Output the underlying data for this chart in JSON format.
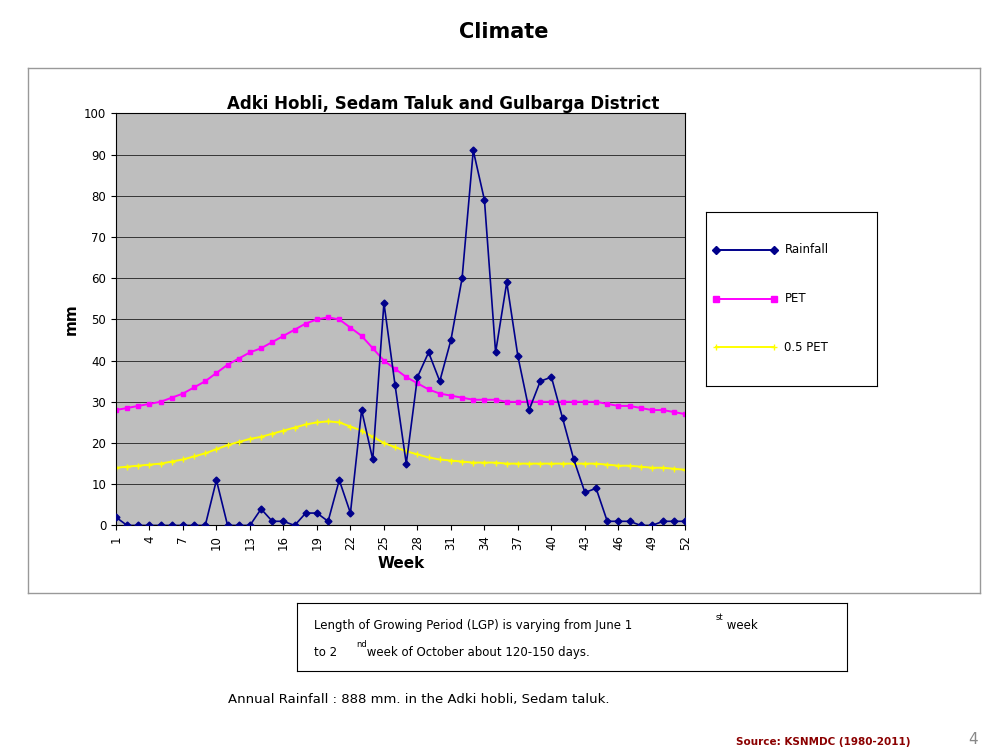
{
  "title": "Adki Hobli, Sedam Taluk and Gulbarga District",
  "header": "Climate",
  "xlabel": "Week",
  "ylabel": "mm",
  "ylim": [
    0,
    100
  ],
  "yticks": [
    0,
    10,
    20,
    30,
    40,
    50,
    60,
    70,
    80,
    90,
    100
  ],
  "xtick_vals": [
    1,
    4,
    7,
    10,
    13,
    16,
    19,
    22,
    25,
    28,
    31,
    34,
    37,
    40,
    43,
    46,
    49,
    52
  ],
  "weeks": [
    1,
    2,
    3,
    4,
    5,
    6,
    7,
    8,
    9,
    10,
    11,
    12,
    13,
    14,
    15,
    16,
    17,
    18,
    19,
    20,
    21,
    22,
    23,
    24,
    25,
    26,
    27,
    28,
    29,
    30,
    31,
    32,
    33,
    34,
    35,
    36,
    37,
    38,
    39,
    40,
    41,
    42,
    43,
    44,
    45,
    46,
    47,
    48,
    49,
    50,
    51,
    52
  ],
  "rainfall": [
    2,
    0,
    0,
    0,
    0,
    0,
    0,
    0,
    0,
    11,
    0,
    0,
    0,
    4,
    1,
    1,
    0,
    3,
    3,
    1,
    11,
    3,
    28,
    16,
    54,
    34,
    15,
    36,
    42,
    35,
    45,
    60,
    91,
    79,
    42,
    59,
    41,
    28,
    35,
    36,
    26,
    16,
    8,
    9,
    1,
    1,
    1,
    0,
    0,
    1,
    1,
    1
  ],
  "PET": [
    28,
    28.5,
    29,
    29.5,
    30,
    31,
    32,
    33.5,
    35,
    37,
    39,
    40.5,
    42,
    43,
    44.5,
    46,
    47.5,
    49,
    50,
    50.5,
    50,
    48,
    46,
    43,
    40,
    38,
    36,
    34.5,
    33,
    32,
    31.5,
    31,
    30.5,
    30.5,
    30.5,
    30,
    30,
    30,
    30,
    30,
    30,
    30,
    30,
    30,
    29.5,
    29,
    29,
    28.5,
    28,
    28,
    27.5,
    27
  ],
  "half_PET": [
    14,
    14.25,
    14.5,
    14.75,
    15,
    15.5,
    16,
    16.75,
    17.5,
    18.5,
    19.5,
    20.25,
    21,
    21.5,
    22.25,
    23,
    23.75,
    24.5,
    25,
    25.25,
    25,
    24,
    23,
    21.5,
    20,
    19,
    18,
    17.25,
    16.5,
    16,
    15.75,
    15.5,
    15.25,
    15.25,
    15.25,
    15,
    15,
    15,
    15,
    15,
    15,
    15,
    15,
    15,
    14.75,
    14.5,
    14.5,
    14.25,
    14,
    14,
    13.75,
    13.5
  ],
  "rainfall_color": "#00008B",
  "PET_color": "#FF00FF",
  "half_PET_color": "#FFFF00",
  "chart_bg": "#BEBEBE",
  "header_bg_top": "#B0E8F8",
  "header_bg_bot": "#E8F8FF",
  "legend_labels": [
    "Rainfall",
    "PET",
    "0.5 PET"
  ],
  "source_text": "Source: KSNMDC (1980-2011)",
  "page_num": "4",
  "annotation2": "Annual Rainfall : 888 mm. in the Adki hobli, Sedam taluk."
}
